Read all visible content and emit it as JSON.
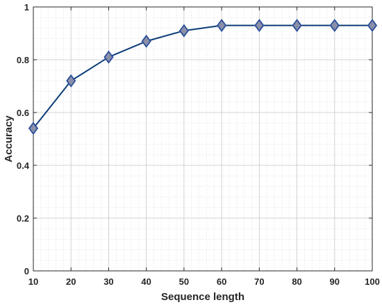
{
  "chart_data": {
    "type": "line",
    "title": "",
    "xlabel": "Sequence length",
    "ylabel": "Accuracy",
    "xlim": [
      10,
      100
    ],
    "ylim": [
      0,
      1
    ],
    "x_ticks": [
      10,
      20,
      30,
      40,
      50,
      60,
      70,
      80,
      90,
      100
    ],
    "y_ticks": [
      0,
      0.2,
      0.4,
      0.6,
      0.8,
      1
    ],
    "y_tick_labels": [
      "0",
      "0.2",
      "0.4",
      "0.6",
      "0.8",
      "1"
    ],
    "grid": true,
    "minor_grid": true,
    "series": [
      {
        "x": [
          10,
          20,
          30,
          40,
          50,
          60,
          70,
          80,
          90,
          100
        ],
        "y": [
          0.54,
          0.72,
          0.81,
          0.87,
          0.91,
          0.93,
          0.93,
          0.93,
          0.93,
          0.93
        ],
        "line_color": "#0b3c78",
        "marker": "diamond",
        "marker_fill": "#8a8fa8",
        "marker_edge": "#2a4f9a"
      }
    ]
  }
}
